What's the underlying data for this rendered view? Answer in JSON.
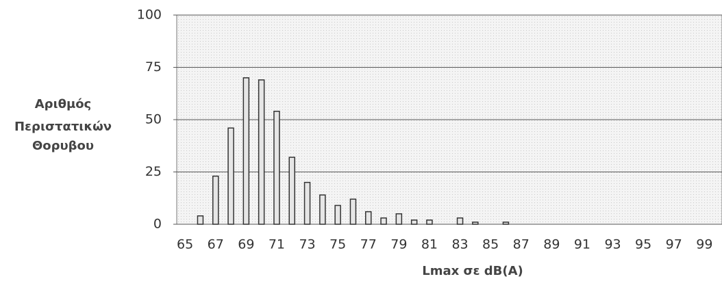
{
  "chart_data": {
    "type": "bar",
    "ylabel": [
      "Αριθμός",
      "Περιστατικών",
      "Θορυβου"
    ],
    "xlabel": "Lmax σε dB(A)",
    "categories": [
      "65",
      null,
      "67",
      null,
      "69",
      null,
      "71",
      null,
      "73",
      null,
      "75",
      null,
      "77",
      null,
      "79",
      null,
      "81",
      null,
      "83",
      null,
      "85",
      null,
      "87",
      null,
      "89",
      null,
      "91",
      null,
      "93",
      null,
      "95",
      null,
      "97",
      null,
      "99",
      null
    ],
    "values": [
      0,
      4,
      23,
      46,
      70,
      69,
      54,
      32,
      20,
      14,
      9,
      12,
      6,
      3,
      5,
      2,
      2,
      0,
      3,
      1,
      0,
      1,
      0,
      0,
      0,
      0,
      0,
      0,
      0,
      0,
      0,
      0,
      0,
      0,
      0,
      0
    ],
    "color": "#e6e6e6",
    "ylim": [
      0,
      100
    ],
    "yticks": [
      0,
      25,
      50,
      75,
      100
    ],
    "grid": true
  }
}
